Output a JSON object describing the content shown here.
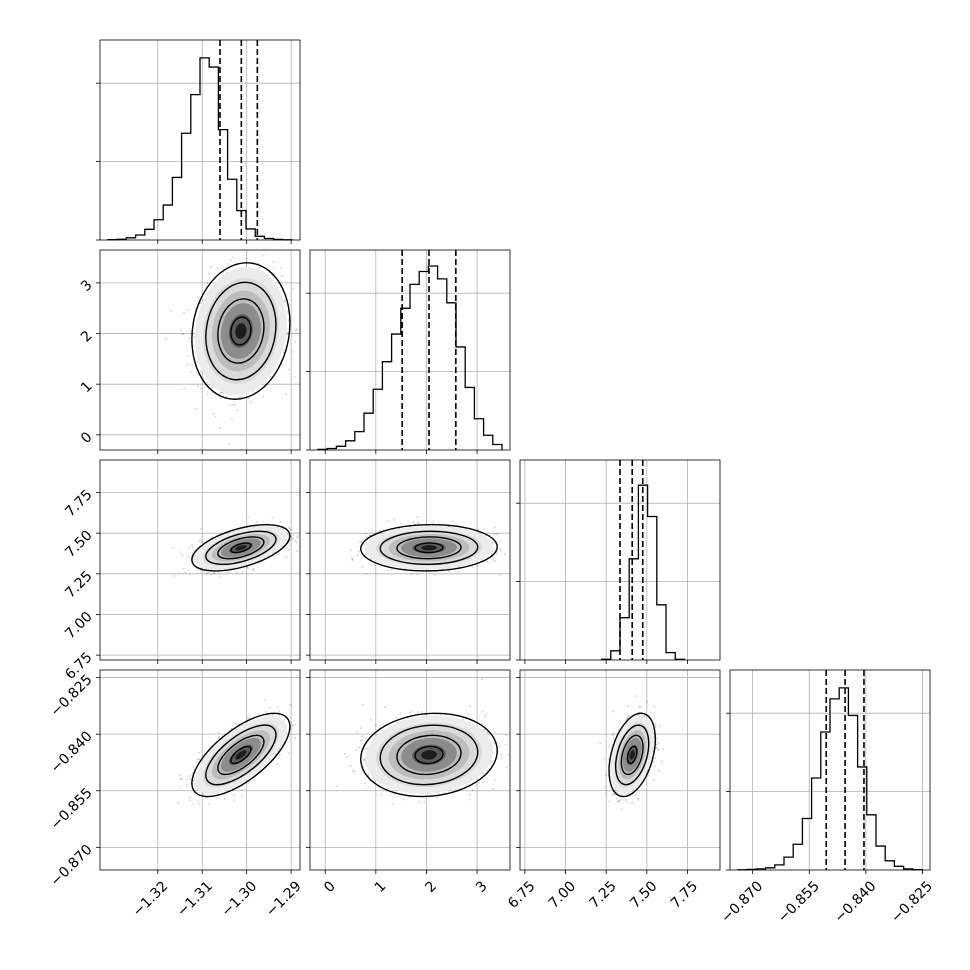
{
  "chart_data": {
    "type": "corner",
    "title": "",
    "params": [
      {
        "range": [
          -1.333,
          -1.288
        ],
        "ticks": [
          -1.32,
          -1.31,
          -1.3,
          -1.29
        ],
        "tick_labels": [
          "−1.32",
          "−1.31",
          "−1.30",
          "−1.29"
        ],
        "quantiles": [
          -1.306,
          -1.3012,
          -1.2976
        ],
        "hist": [
          0.002,
          0.004,
          0.012,
          0.027,
          0.058,
          0.11,
          0.19,
          0.34,
          0.58,
          0.79,
          0.99,
          0.94,
          0.6,
          0.33,
          0.16,
          0.06,
          0.02,
          0.008,
          0.003,
          0.001
        ]
      },
      {
        "range": [
          -0.3,
          3.65
        ],
        "ticks": [
          0,
          1,
          2,
          3
        ],
        "tick_labels": [
          "0",
          "1",
          "2",
          "3"
        ],
        "quantiles": [
          1.52,
          2.05,
          2.58
        ],
        "hist": [
          0.003,
          0.008,
          0.02,
          0.05,
          0.1,
          0.2,
          0.33,
          0.48,
          0.63,
          0.77,
          0.9,
          0.97,
          1.0,
          0.93,
          0.8,
          0.56,
          0.34,
          0.17,
          0.08,
          0.03
        ]
      },
      {
        "range": [
          6.72,
          7.95
        ],
        "ticks": [
          6.75,
          7.0,
          7.25,
          7.5,
          7.75
        ],
        "tick_labels": [
          "6.75",
          "7.00",
          "7.25",
          "7.50",
          "7.75"
        ],
        "quantiles": [
          7.335,
          7.41,
          7.475
        ],
        "hist": [
          0,
          0,
          0,
          0,
          0,
          0,
          0,
          0,
          0.004,
          0.05,
          0.23,
          0.55,
          0.95,
          0.78,
          0.3,
          0.04,
          0.004,
          0,
          0,
          0
        ]
      },
      {
        "range": [
          -0.876,
          -0.823
        ],
        "ticks": [
          -0.87,
          -0.855,
          -0.84,
          -0.825
        ],
        "tick_labels": [
          "−0.870",
          "−0.855",
          "−0.840",
          "−0.825"
        ],
        "quantiles": [
          -0.8505,
          -0.8455,
          -0.8405
        ],
        "hist": [
          0.001,
          0.003,
          0.006,
          0.012,
          0.028,
          0.07,
          0.14,
          0.28,
          0.5,
          0.75,
          0.93,
          0.99,
          0.84,
          0.56,
          0.3,
          0.13,
          0.05,
          0.02,
          0.006,
          0.002
        ]
      }
    ],
    "y_tick_labels": {
      "1": [
        "0",
        "1",
        "2",
        "3"
      ],
      "2": [
        "6.75",
        "7.00",
        "7.25",
        "7.50",
        "7.75"
      ],
      "3": [
        "−0.870",
        "−0.855",
        "−0.840",
        "−0.825"
      ]
    },
    "pairs": [
      {
        "row": 1,
        "col": 0,
        "center": [
          -1.3013,
          2.05
        ],
        "sigma": [
          0.0045,
          0.55
        ],
        "rho": 0.12
      },
      {
        "row": 2,
        "col": 0,
        "center": [
          -1.3013,
          7.41
        ],
        "sigma": [
          0.0045,
          0.058
        ],
        "rho": 0.52
      },
      {
        "row": 2,
        "col": 1,
        "center": [
          2.05,
          7.41
        ],
        "sigma": [
          0.55,
          0.058
        ],
        "rho": 0.04
      },
      {
        "row": 3,
        "col": 0,
        "center": [
          -1.3013,
          -0.8455
        ],
        "sigma": [
          0.0045,
          0.0045
        ],
        "rho": 0.68
      },
      {
        "row": 3,
        "col": 1,
        "center": [
          2.05,
          -0.8455
        ],
        "sigma": [
          0.55,
          0.0045
        ],
        "rho": 0.1
      },
      {
        "row": 3,
        "col": 2,
        "center": [
          7.41,
          -0.8455
        ],
        "sigma": [
          0.058,
          0.0045
        ],
        "rho": 0.38
      }
    ],
    "grid": true,
    "colors": {
      "line": "#000000",
      "grid": "#b0b0b0",
      "points": "#000000"
    }
  }
}
